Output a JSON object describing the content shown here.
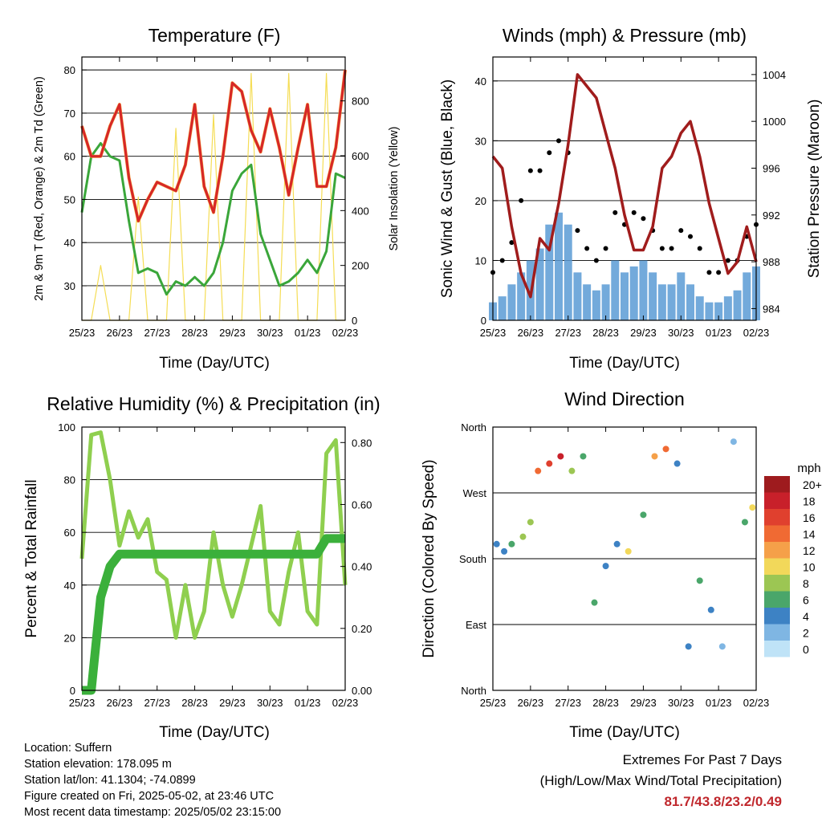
{
  "x_ticks": [
    "25/23",
    "26/23",
    "27/23",
    "28/23",
    "29/23",
    "30/23",
    "01/23",
    "02/23"
  ],
  "colors": {
    "temp": "#d62728",
    "temp9": "#f59a33",
    "dewpoint": "#3aa63a",
    "solar": "#f5dd55",
    "gust": "#000000",
    "wind": "#5b9bd5",
    "pressure": "#a01c1c",
    "rh": "#8fcf4f",
    "precip": "#3bb03b"
  },
  "panels": {
    "temp": {
      "title": "Temperature (F)",
      "xlabel": "Time (Day/UTC)",
      "ylabel": "2m & 9m T (Red, Orange) & 2m Td (Green)",
      "ylabel_right": "Solar Insolation (Yellow)",
      "y_ticks": [
        "30",
        "40",
        "50",
        "60",
        "70",
        "80"
      ],
      "y2_ticks": [
        "0",
        "200",
        "400",
        "600",
        "800"
      ]
    },
    "wind": {
      "title": "Winds (mph) & Pressure (mb)",
      "xlabel": "Time (Day/UTC)",
      "ylabel": "Sonic Wind & Gust (Blue, Black)",
      "ylabel_right": "Station Pressure (Maroon)",
      "y_ticks": [
        "0",
        "10",
        "20",
        "30",
        "40"
      ],
      "y2_ticks": [
        "984",
        "988",
        "992",
        "996",
        "1000",
        "1004"
      ]
    },
    "rh": {
      "title": "Relative Humidity (%) & Precipitation (in)",
      "xlabel": "Time (Day/UTC)",
      "ylabel": "Percent & Total Rainfall",
      "y_ticks": [
        "0",
        "20",
        "40",
        "60",
        "80",
        "100"
      ],
      "y2_ticks": [
        "0.00",
        "0.20",
        "0.40",
        "0.60",
        "0.80"
      ]
    },
    "dir": {
      "title": "Wind Direction",
      "xlabel": "Time (Day/UTC)",
      "ylabel": "Direction (Colored By Speed)",
      "y_ticks": [
        "North",
        "East",
        "South",
        "West",
        "North"
      ],
      "legend_title": "mph",
      "legend_labels": [
        "20+",
        "18",
        "16",
        "14",
        "12",
        "10",
        "8",
        "6",
        "4",
        "2",
        "0"
      ],
      "legend_colors": [
        "#9e1b1e",
        "#c8202a",
        "#e0402e",
        "#f06a33",
        "#f5a049",
        "#f2d85a",
        "#9cc653",
        "#4aa66a",
        "#3d82c4",
        "#7fb6e3",
        "#bfe3f7"
      ]
    }
  },
  "chart_data": [
    {
      "type": "line",
      "title": "Temperature (F)",
      "xlabel": "Time (Day/UTC)",
      "ylabel": "2m & 9m T (Red, Orange) & 2m Td (Green)",
      "ylabel_right": "Solar Insolation (Yellow)",
      "x_days": [
        0,
        0.25,
        0.5,
        0.75,
        1,
        1.25,
        1.5,
        1.75,
        2,
        2.25,
        2.5,
        2.75,
        3,
        3.25,
        3.5,
        3.75,
        4,
        4.25,
        4.5,
        4.75,
        5,
        5.25,
        5.5,
        5.75,
        6,
        6.25,
        6.5,
        6.75,
        7
      ],
      "series": [
        {
          "name": "2m T",
          "values": [
            67,
            60,
            60,
            67,
            72,
            55,
            45,
            50,
            54,
            53,
            52,
            58,
            72,
            53,
            47,
            60,
            77,
            75,
            66,
            61,
            71,
            62,
            51,
            62,
            72,
            53,
            53,
            62,
            80
          ]
        },
        {
          "name": "2m Td",
          "values": [
            47,
            60,
            63,
            60,
            59,
            45,
            33,
            34,
            33,
            28,
            31,
            30,
            32,
            30,
            33,
            40,
            52,
            56,
            58,
            42,
            36,
            30,
            31,
            33,
            36,
            33,
            38,
            56,
            55
          ]
        },
        {
          "name": "Solar Insolation",
          "values": [
            0,
            0,
            200,
            0,
            0,
            0,
            450,
            0,
            0,
            0,
            700,
            0,
            0,
            0,
            750,
            0,
            0,
            0,
            900,
            0,
            0,
            0,
            900,
            0,
            0,
            0,
            900,
            0,
            0
          ]
        }
      ],
      "ylim": [
        22,
        83
      ],
      "y2lim": [
        0,
        960
      ]
    },
    {
      "type": "line",
      "title": "Winds (mph) & Pressure (mb)",
      "xlabel": "Time (Day/UTC)",
      "ylabel": "Sonic Wind & Gust (Blue, Black)",
      "ylabel_right": "Station Pressure (Maroon)",
      "x_days": [
        0,
        0.25,
        0.5,
        0.75,
        1,
        1.25,
        1.5,
        1.75,
        2,
        2.25,
        2.5,
        2.75,
        3,
        3.25,
        3.5,
        3.75,
        4,
        4.25,
        4.5,
        4.75,
        5,
        5.25,
        5.5,
        5.75,
        6,
        6.25,
        6.5,
        6.75,
        7
      ],
      "series": [
        {
          "name": "Gust",
          "values": [
            8,
            10,
            13,
            20,
            25,
            25,
            28,
            30,
            28,
            15,
            12,
            10,
            12,
            18,
            16,
            18,
            17,
            15,
            12,
            12,
            15,
            14,
            12,
            8,
            8,
            10,
            10,
            14,
            16
          ]
        },
        {
          "name": "Wind",
          "values": [
            3,
            4,
            6,
            8,
            10,
            12,
            16,
            18,
            16,
            8,
            6,
            5,
            6,
            10,
            8,
            9,
            10,
            8,
            6,
            6,
            8,
            6,
            4,
            3,
            3,
            4,
            5,
            8,
            9
          ]
        },
        {
          "name": "Pressure",
          "values": [
            997,
            996,
            991,
            987,
            985,
            990,
            989,
            993,
            998,
            1004,
            1003,
            1002,
            999,
            996,
            992,
            989,
            989,
            991,
            996,
            997,
            999,
            1000,
            997,
            993,
            990,
            987,
            988,
            991,
            988
          ]
        }
      ],
      "ylim": [
        0,
        44
      ],
      "y2lim": [
        983,
        1005.5
      ]
    },
    {
      "type": "line",
      "title": "Relative Humidity (%) & Precipitation (in)",
      "xlabel": "Time (Day/UTC)",
      "ylabel": "Percent & Total Rainfall",
      "x_days": [
        0,
        0.25,
        0.5,
        0.75,
        1,
        1.25,
        1.5,
        1.75,
        2,
        2.25,
        2.5,
        2.75,
        3,
        3.25,
        3.5,
        3.75,
        4,
        4.25,
        4.5,
        4.75,
        5,
        5.25,
        5.5,
        5.75,
        6,
        6.25,
        6.5,
        6.75,
        7
      ],
      "series": [
        {
          "name": "Relative Humidity",
          "values": [
            50,
            97,
            98,
            80,
            55,
            68,
            58,
            65,
            45,
            42,
            20,
            40,
            20,
            30,
            60,
            40,
            28,
            40,
            55,
            70,
            30,
            25,
            45,
            60,
            30,
            25,
            90,
            95,
            40
          ]
        },
        {
          "name": "Total Precipitation",
          "values": [
            0,
            0,
            0.3,
            0.4,
            0.44,
            0.44,
            0.44,
            0.44,
            0.44,
            0.44,
            0.44,
            0.44,
            0.44,
            0.44,
            0.44,
            0.44,
            0.44,
            0.44,
            0.44,
            0.44,
            0.44,
            0.44,
            0.44,
            0.44,
            0.44,
            0.44,
            0.49,
            0.49,
            0.49
          ]
        }
      ],
      "ylim": [
        0,
        100
      ],
      "y2lim": [
        0,
        0.85
      ]
    },
    {
      "type": "scatter",
      "title": "Wind Direction",
      "xlabel": "Time (Day/UTC)",
      "ylabel": "Direction (Colored By Speed)",
      "color_by": "mph",
      "points": [
        {
          "x": 0.1,
          "dir": 200,
          "mph": 3
        },
        {
          "x": 0.3,
          "dir": 190,
          "mph": 4
        },
        {
          "x": 0.5,
          "dir": 200,
          "mph": 5
        },
        {
          "x": 0.8,
          "dir": 210,
          "mph": 7
        },
        {
          "x": 1.0,
          "dir": 230,
          "mph": 8
        },
        {
          "x": 1.2,
          "dir": 300,
          "mph": 14
        },
        {
          "x": 1.5,
          "dir": 310,
          "mph": 16
        },
        {
          "x": 1.8,
          "dir": 320,
          "mph": 18
        },
        {
          "x": 2.1,
          "dir": 300,
          "mph": 8
        },
        {
          "x": 2.4,
          "dir": 320,
          "mph": 5
        },
        {
          "x": 2.7,
          "dir": 120,
          "mph": 5
        },
        {
          "x": 3.0,
          "dir": 170,
          "mph": 4
        },
        {
          "x": 3.3,
          "dir": 200,
          "mph": 3
        },
        {
          "x": 3.6,
          "dir": 190,
          "mph": 10
        },
        {
          "x": 4.0,
          "dir": 240,
          "mph": 6
        },
        {
          "x": 4.3,
          "dir": 320,
          "mph": 12
        },
        {
          "x": 4.6,
          "dir": 330,
          "mph": 14
        },
        {
          "x": 4.9,
          "dir": 310,
          "mph": 3
        },
        {
          "x": 5.2,
          "dir": 60,
          "mph": 3
        },
        {
          "x": 5.5,
          "dir": 150,
          "mph": 6
        },
        {
          "x": 5.8,
          "dir": 110,
          "mph": 3
        },
        {
          "x": 6.1,
          "dir": 60,
          "mph": 2
        },
        {
          "x": 6.4,
          "dir": 340,
          "mph": 2
        },
        {
          "x": 6.7,
          "dir": 230,
          "mph": 6
        },
        {
          "x": 6.9,
          "dir": 250,
          "mph": 9
        }
      ]
    }
  ],
  "info": {
    "location": "Location: Suffern",
    "elevation": "Station elevation: 178.095 m",
    "latlon": "Station lat/lon: 41.1304; -74.0899",
    "created": "Figure created on Fri, 2025-05-02, at 23:46 UTC",
    "recent": "Most recent data timestamp: 2025/05/02 23:15:00"
  },
  "extremes": {
    "title": "Extremes For Past 7 Days",
    "subtitle": "(High/Low/Max Wind/Total Precipitation)",
    "values": "81.7/43.8/23.2/0.49"
  }
}
